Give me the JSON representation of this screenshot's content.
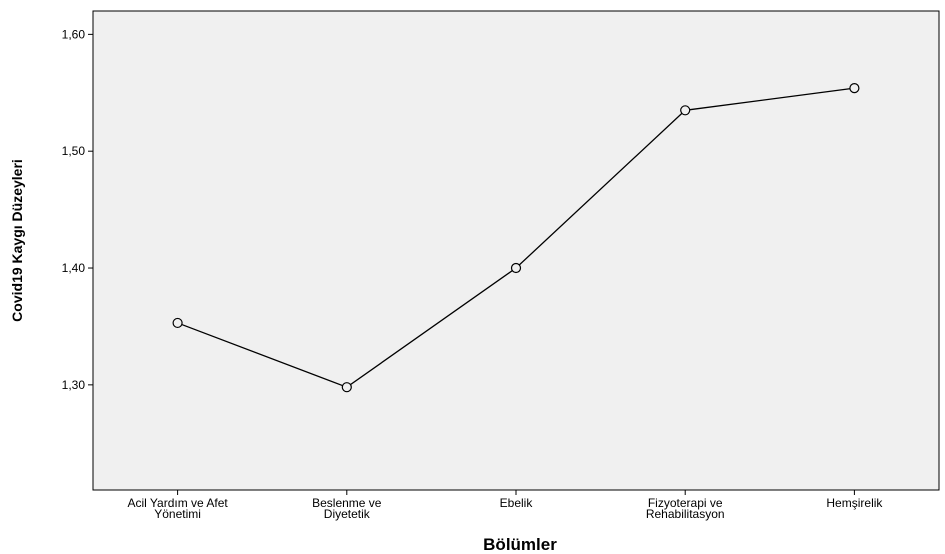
{
  "chart_data": {
    "type": "line",
    "title": "",
    "xlabel": "Bölümler",
    "ylabel": "Covid19 Kaygı Düzeyleri",
    "categories": [
      [
        "Acil Yardım ve Afet",
        "Yönetimi"
      ],
      [
        "Beslenme ve",
        "Diyetetik"
      ],
      [
        "Ebelik"
      ],
      [
        "Fizyoterapi ve",
        "Rehabilitasyon"
      ],
      [
        "Hemşirelik"
      ]
    ],
    "values": [
      1.353,
      1.298,
      1.4,
      1.535,
      1.554
    ],
    "ylim": [
      1.21,
      1.62
    ],
    "yticks": [
      1.3,
      1.4,
      1.5,
      1.6
    ],
    "ytick_labels": [
      "1,30",
      "1,40",
      "1,50",
      "1,60"
    ],
    "grid": false,
    "colors": {
      "plot_background": "#f0f0f0",
      "line": "#000000",
      "marker_stroke": "#000000"
    },
    "marker": "hollow-circle"
  }
}
